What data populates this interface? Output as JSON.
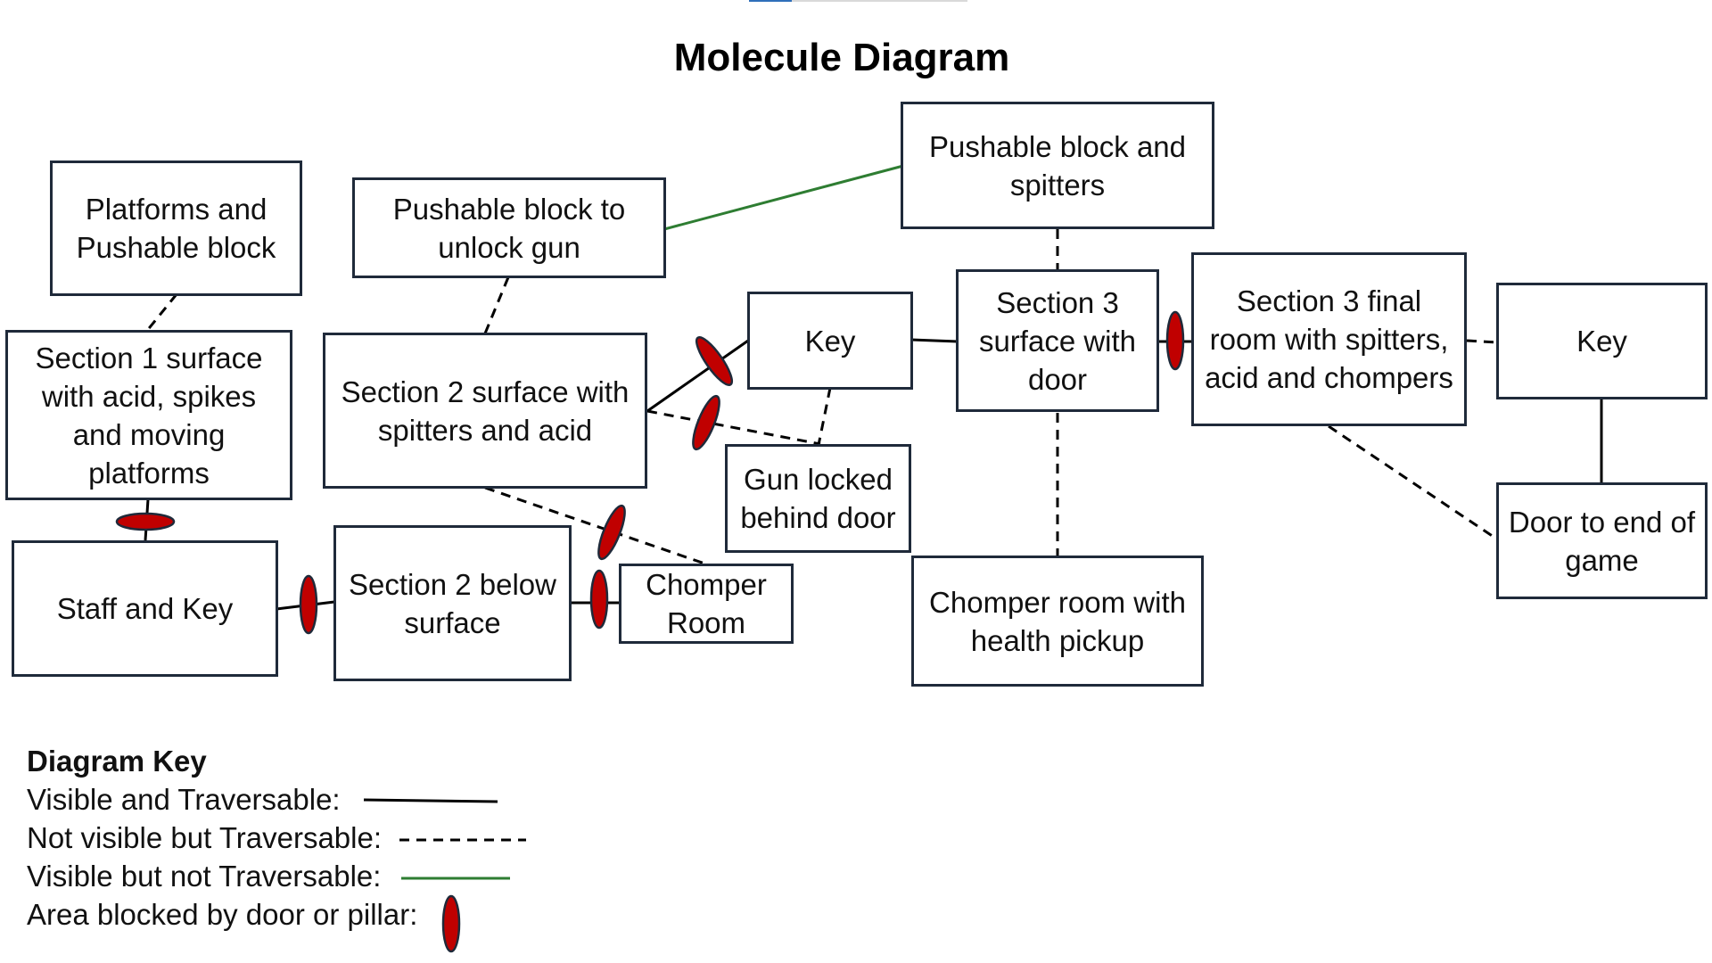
{
  "title": "Molecule Diagram",
  "nodes": {
    "platforms_pushable": "Platforms and Pushable block",
    "pushable_unlock_gun": "Pushable block to unlock gun",
    "pushable_spitters": "Pushable block and spitters",
    "section1_surface": "Section 1 surface with acid, spikes and moving platforms",
    "section2_surface": "Section 2 surface with spitters and acid",
    "key_1": "Key",
    "section3_surface": "Section 3 surface with door",
    "section3_final": "Section 3 final room with spitters, acid and chompers",
    "key_2": "Key",
    "gun_locked": "Gun locked behind door",
    "staff_and_key": "Staff and Key",
    "section2_below": "Section 2 below surface",
    "chomper_room": "Chomper Room",
    "chomper_health": "Chomper room with health pickup",
    "door_end": "Door to end of game"
  },
  "legend": {
    "title": "Diagram Key",
    "visible_traversable": "Visible and Traversable:",
    "not_visible_traversable": "Not visible but Traversable:",
    "visible_not_traversable": "Visible but not Traversable:",
    "blocked": "Area blocked by door or pillar:"
  },
  "colors": {
    "box_border": "#1f2a3a",
    "solid_line": "#000000",
    "green_line": "#2e7d32",
    "door_fill": "#c00000",
    "door_stroke": "#1f2a3a"
  }
}
